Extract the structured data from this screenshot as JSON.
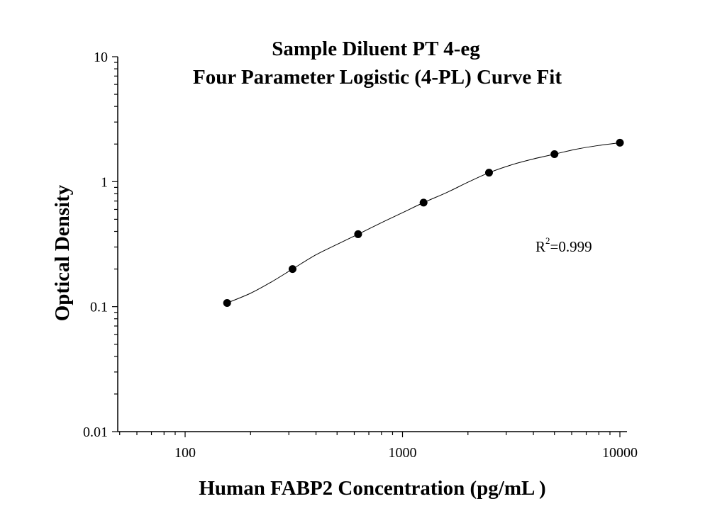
{
  "chart_data": {
    "type": "scatter",
    "title_lines": [
      "Sample Diluent PT 4-eg",
      "Four Parameter Logistic (4-PL) Curve Fit"
    ],
    "xlabel": "Human FABP2 Concentration (pg/mL )",
    "ylabel": "Optical Density",
    "x_scale": "log",
    "y_scale": "log",
    "xlim": [
      50,
      11000
    ],
    "ylim": [
      0.01,
      10
    ],
    "x_ticks": [
      {
        "value": 100,
        "label": "100"
      },
      {
        "value": 1000,
        "label": "1000"
      },
      {
        "value": 10000,
        "label": "10000"
      }
    ],
    "y_ticks": [
      {
        "value": 0.01,
        "label": "0.01"
      },
      {
        "value": 0.1,
        "label": "0.1"
      },
      {
        "value": 1,
        "label": "1"
      },
      {
        "value": 10,
        "label": "10"
      }
    ],
    "series": [
      {
        "x": [
          156,
          312,
          625,
          1250,
          2500,
          5000,
          10000
        ],
        "y": [
          0.107,
          0.2,
          0.38,
          0.68,
          1.18,
          1.66,
          2.05
        ]
      }
    ],
    "fit_curve": {
      "model": "4-PL",
      "x": [
        156,
        200,
        250,
        312,
        400,
        500,
        625,
        800,
        1000,
        1250,
        1600,
        2000,
        2500,
        3200,
        4000,
        5000,
        6300,
        8000,
        10000
      ],
      "y": [
        0.107,
        0.128,
        0.158,
        0.2,
        0.26,
        0.315,
        0.38,
        0.47,
        0.565,
        0.68,
        0.82,
        0.99,
        1.18,
        1.37,
        1.52,
        1.66,
        1.82,
        1.95,
        2.05
      ]
    },
    "annotation": {
      "base": "R",
      "sup": "2",
      "value": "=0.999"
    },
    "grid": false,
    "legend": "none"
  }
}
